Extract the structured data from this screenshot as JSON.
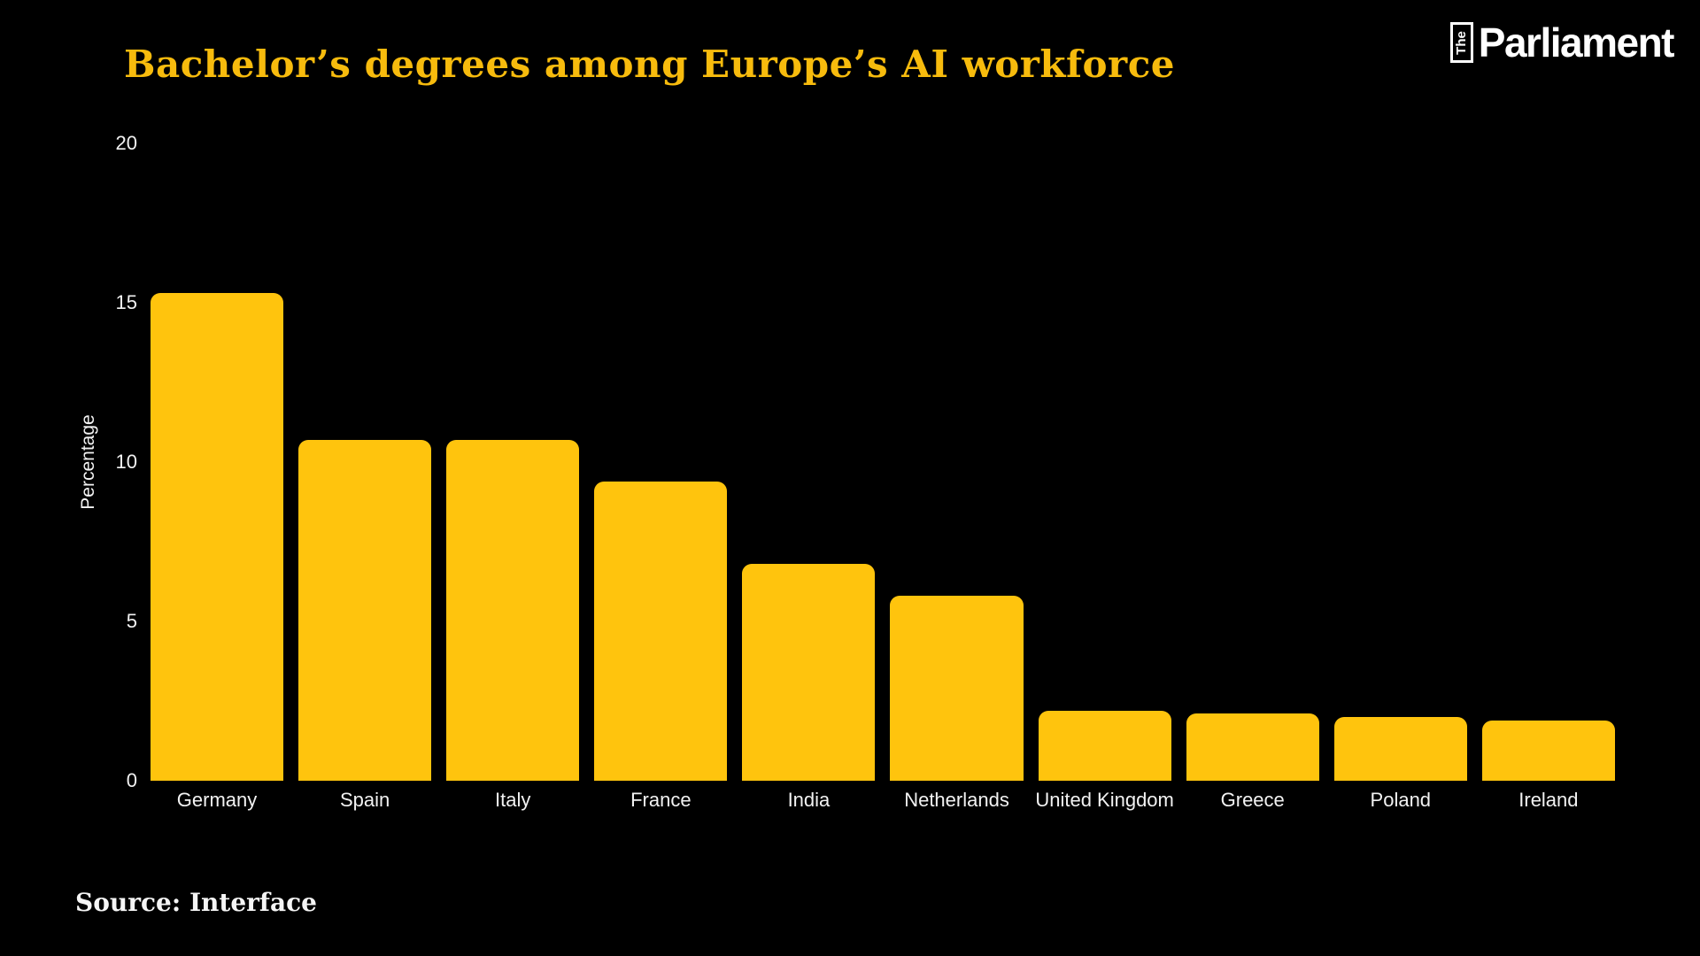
{
  "header": {
    "logo": {
      "the": "The",
      "name": "Parliament"
    }
  },
  "chart_data": {
    "type": "bar",
    "title": "Bachelor’s degrees among Europe’s AI workforce",
    "categories": [
      "Germany",
      "Spain",
      "Italy",
      "France",
      "India",
      "Netherlands",
      "United Kingdom",
      "Greece",
      "Poland",
      "Ireland"
    ],
    "values": [
      15.3,
      10.7,
      10.7,
      9.4,
      6.8,
      5.8,
      2.2,
      2.1,
      2.0,
      1.9
    ],
    "xlabel": "",
    "ylabel": "Percentage",
    "ylim": [
      0,
      20
    ],
    "yticks": [
      0,
      5,
      10,
      15,
      20
    ],
    "grid": false,
    "legend": false,
    "bar_color": "#FFC40D",
    "background_color": "#000000",
    "title_color": "#F7BB0D",
    "text_color": "#F2F2F2"
  },
  "footer": {
    "source": "Source: Interface"
  }
}
